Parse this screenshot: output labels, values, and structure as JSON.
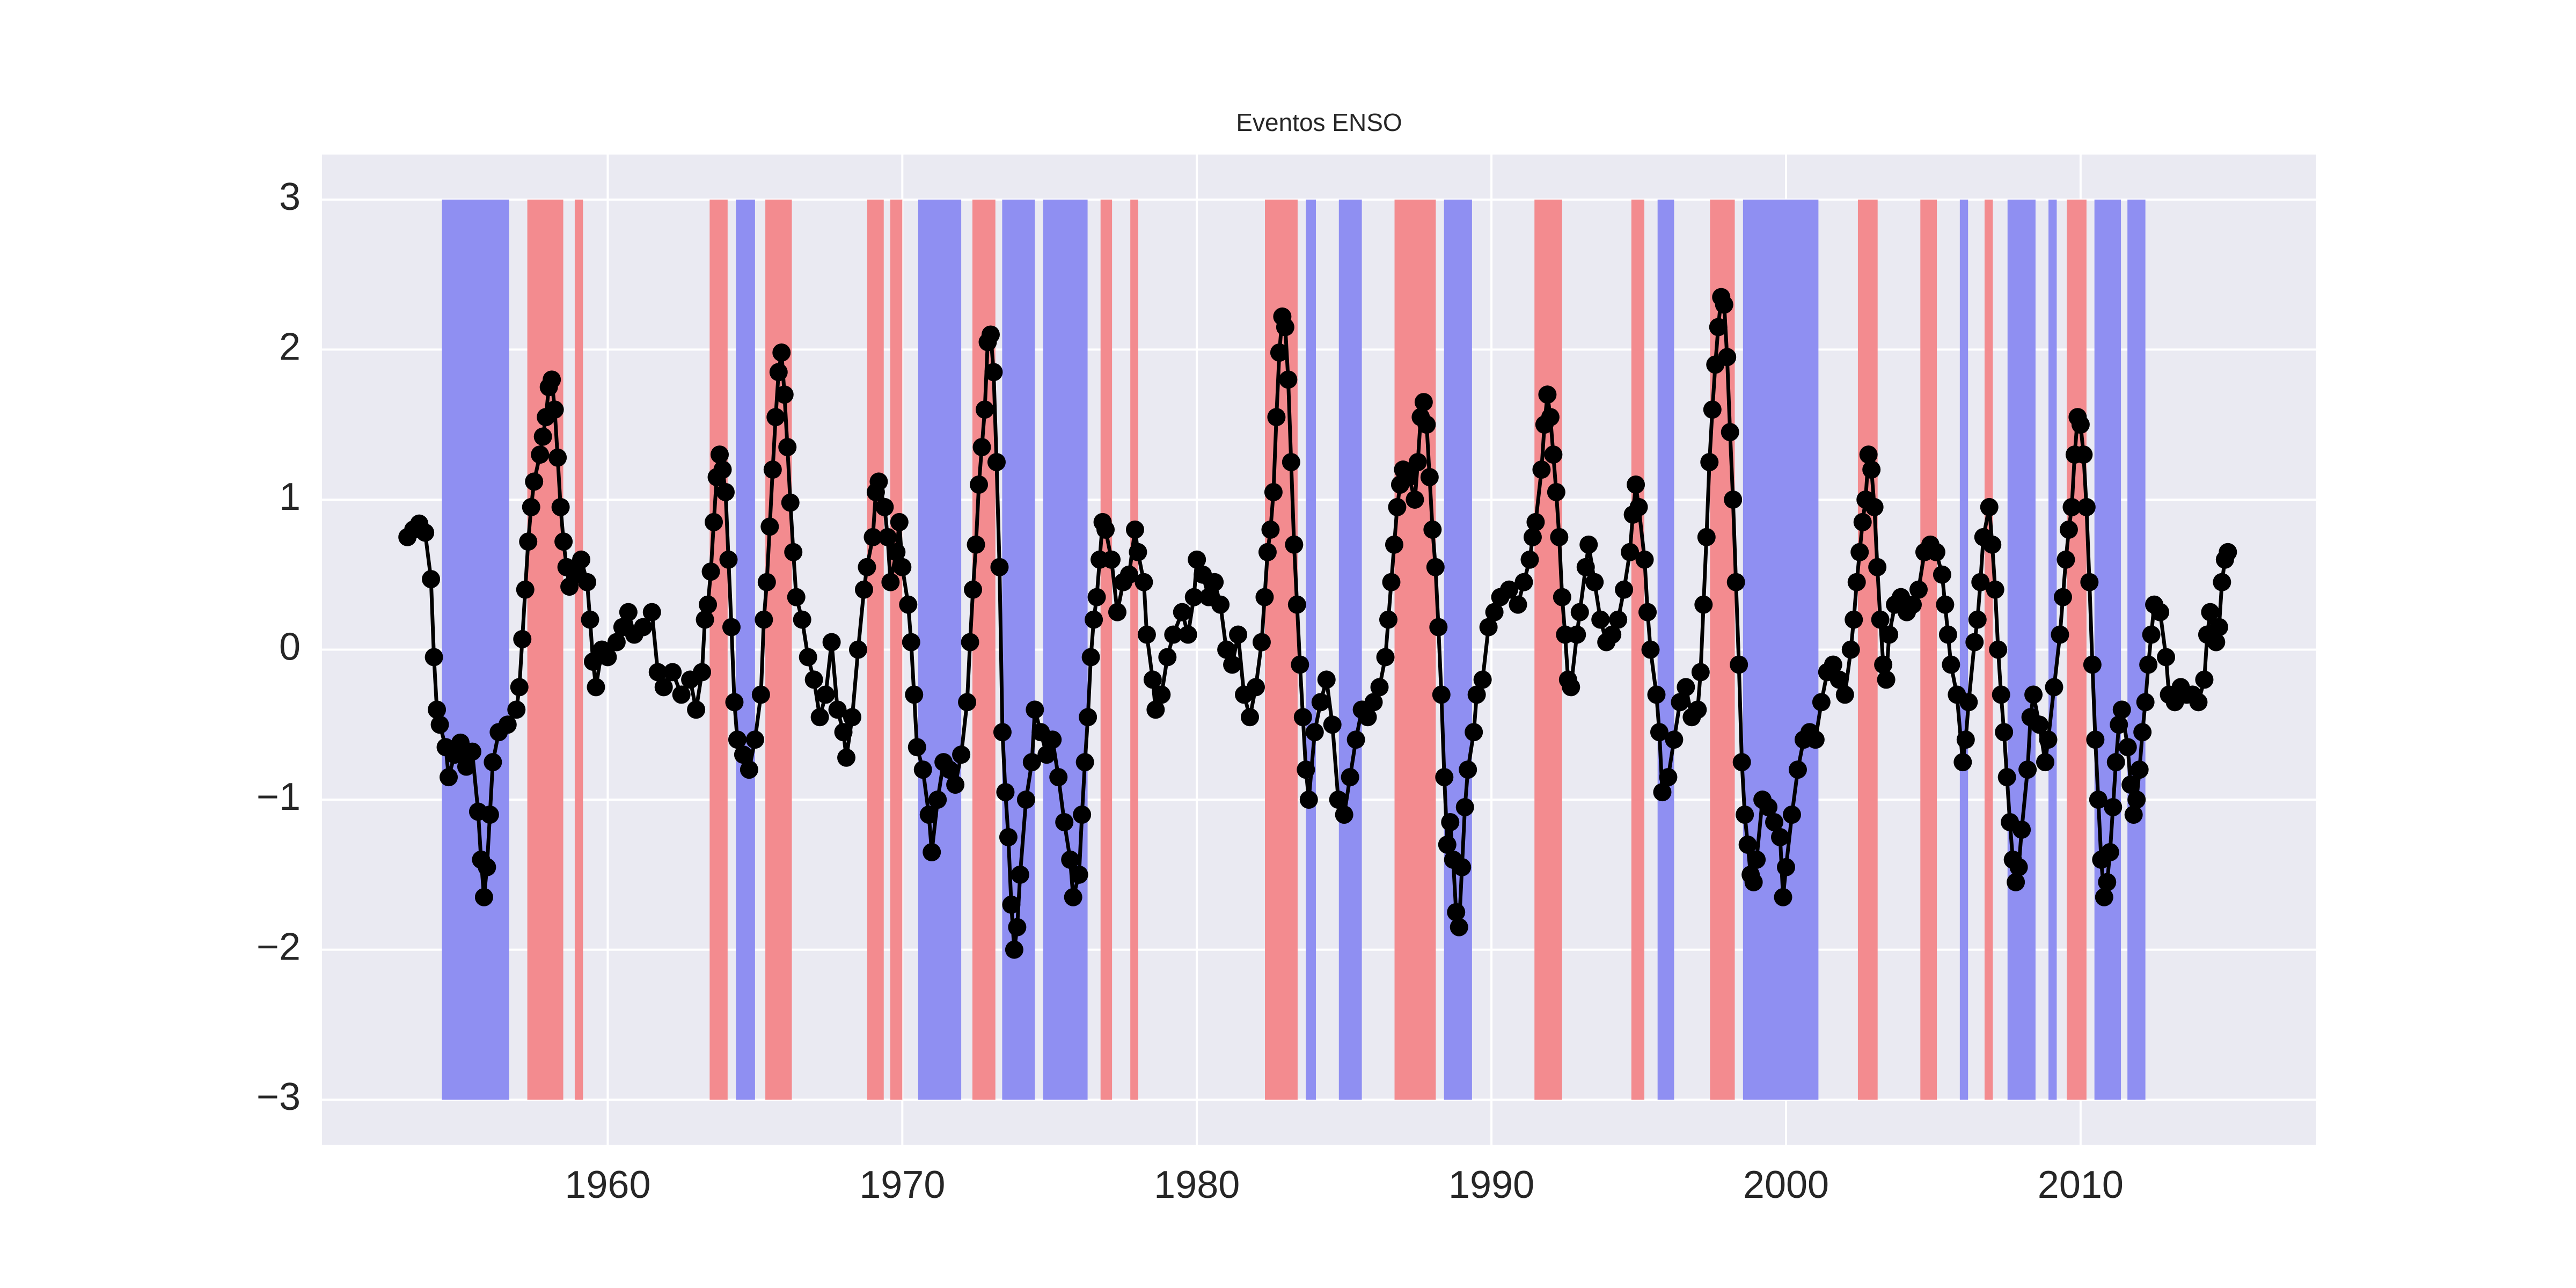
{
  "chart_data": {
    "type": "line",
    "title": "Eventos ENSO",
    "xlim": [
      1950.3,
      2018.0
    ],
    "ylim": [
      -3.3,
      3.3
    ],
    "xticks": [
      1960,
      1970,
      1980,
      1990,
      2000,
      2010
    ],
    "yticks": [
      {
        "value": -3,
        "label": "−3"
      },
      {
        "value": -2,
        "label": "−2"
      },
      {
        "value": -1,
        "label": "−1"
      },
      0,
      1,
      2,
      3
    ],
    "grid": true,
    "span_y": [
      -3,
      3
    ],
    "spans": [
      {
        "color": "#8f8ff2",
        "ranges": [
          [
            1954.37,
            1956.65
          ],
          [
            1964.35,
            1965.0
          ],
          [
            1970.54,
            1972.0
          ],
          [
            1973.39,
            1974.5
          ],
          [
            1974.78,
            1976.29
          ],
          [
            1983.7,
            1984.04
          ],
          [
            1984.82,
            1985.6
          ],
          [
            1988.39,
            1989.34
          ],
          [
            1995.64,
            1996.2
          ],
          [
            1998.54,
            2001.1
          ],
          [
            2005.9,
            2006.18
          ],
          [
            2007.52,
            2008.47
          ],
          [
            2008.91,
            2009.19
          ],
          [
            2010.47,
            2011.37
          ],
          [
            2011.59,
            2012.2
          ]
        ]
      },
      {
        "color": "#f38b8f",
        "ranges": [
          [
            1957.27,
            1958.49
          ],
          [
            1958.88,
            1959.16
          ],
          [
            1963.46,
            1964.07
          ],
          [
            1965.35,
            1966.25
          ],
          [
            1968.81,
            1969.37
          ],
          [
            1969.59,
            1970.0
          ],
          [
            1972.38,
            1973.16
          ],
          [
            1976.73,
            1977.12
          ],
          [
            1977.74,
            1978.01
          ],
          [
            1982.31,
            1983.42
          ],
          [
            1986.71,
            1988.11
          ],
          [
            1991.46,
            1992.4
          ],
          [
            1994.75,
            1995.19
          ],
          [
            1997.42,
            1998.26
          ],
          [
            2002.44,
            2003.11
          ],
          [
            2004.56,
            2005.12
          ],
          [
            2006.74,
            2007.02
          ],
          [
            2009.53,
            2010.2
          ]
        ]
      }
    ],
    "series": [
      {
        "color": "#000000",
        "x": [
          1953.2,
          1953.4,
          1953.6,
          1953.8,
          1954.0,
          1954.1,
          1954.2,
          1954.3,
          1954.5,
          1954.6,
          1954.8,
          1955.0,
          1955.2,
          1955.4,
          1955.6,
          1955.7,
          1955.8,
          1955.9,
          1956.0,
          1956.1,
          1956.3,
          1956.6,
          1956.9,
          1957.0,
          1957.1,
          1957.2,
          1957.3,
          1957.4,
          1957.5,
          1957.7,
          1957.8,
          1957.9,
          1958.0,
          1958.1,
          1958.2,
          1958.3,
          1958.4,
          1958.5,
          1958.6,
          1958.7,
          1958.9,
          1959.1,
          1959.3,
          1959.4,
          1959.5,
          1959.6,
          1959.8,
          1960.0,
          1960.3,
          1960.5,
          1960.7,
          1960.9,
          1961.2,
          1961.5,
          1961.7,
          1961.9,
          1962.2,
          1962.5,
          1962.8,
          1963.0,
          1963.2,
          1963.3,
          1963.4,
          1963.5,
          1963.6,
          1963.7,
          1963.8,
          1963.9,
          1964.0,
          1964.1,
          1964.2,
          1964.3,
          1964.4,
          1964.6,
          1964.8,
          1965.0,
          1965.2,
          1965.3,
          1965.4,
          1965.5,
          1965.6,
          1965.7,
          1965.8,
          1965.9,
          1966.0,
          1966.1,
          1966.2,
          1966.3,
          1966.4,
          1966.6,
          1966.8,
          1967.0,
          1967.2,
          1967.4,
          1967.6,
          1967.8,
          1968.0,
          1968.1,
          1968.3,
          1968.5,
          1968.7,
          1968.8,
          1969.0,
          1969.1,
          1969.2,
          1969.4,
          1969.5,
          1969.6,
          1969.8,
          1969.9,
          1970.0,
          1970.2,
          1970.3,
          1970.4,
          1970.5,
          1970.7,
          1970.9,
          1971.0,
          1971.2,
          1971.4,
          1971.6,
          1971.8,
          1972.0,
          1972.2,
          1972.3,
          1972.4,
          1972.5,
          1972.6,
          1972.7,
          1972.8,
          1972.9,
          1973.0,
          1973.1,
          1973.2,
          1973.3,
          1973.4,
          1973.5,
          1973.6,
          1973.7,
          1973.8,
          1973.9,
          1974.0,
          1974.2,
          1974.4,
          1974.5,
          1974.7,
          1974.9,
          1975.1,
          1975.3,
          1975.5,
          1975.7,
          1975.8,
          1976.0,
          1976.1,
          1976.2,
          1976.3,
          1976.4,
          1976.5,
          1976.6,
          1976.7,
          1976.8,
          1976.9,
          1977.1,
          1977.3,
          1977.5,
          1977.7,
          1977.9,
          1978.0,
          1978.2,
          1978.3,
          1978.5,
          1978.6,
          1978.8,
          1979.0,
          1979.2,
          1979.5,
          1979.7,
          1979.9,
          1980.0,
          1980.2,
          1980.4,
          1980.6,
          1980.8,
          1981.0,
          1981.2,
          1981.4,
          1981.6,
          1981.8,
          1982.0,
          1982.2,
          1982.3,
          1982.4,
          1982.5,
          1982.6,
          1982.7,
          1982.8,
          1982.9,
          1983.0,
          1983.1,
          1983.2,
          1983.3,
          1983.4,
          1983.5,
          1983.6,
          1983.7,
          1983.8,
          1984.0,
          1984.2,
          1984.4,
          1984.6,
          1984.8,
          1985.0,
          1985.2,
          1985.4,
          1985.6,
          1985.8,
          1986.0,
          1986.2,
          1986.4,
          1986.5,
          1986.6,
          1986.7,
          1986.8,
          1986.9,
          1987.0,
          1987.2,
          1987.4,
          1987.5,
          1987.6,
          1987.7,
          1987.8,
          1987.9,
          1988.0,
          1988.1,
          1988.2,
          1988.3,
          1988.4,
          1988.5,
          1988.6,
          1988.7,
          1988.8,
          1988.9,
          1989.0,
          1989.1,
          1989.2,
          1989.4,
          1989.5,
          1989.7,
          1989.9,
          1990.1,
          1990.3,
          1990.6,
          1990.9,
          1991.1,
          1991.3,
          1991.4,
          1991.5,
          1991.7,
          1991.8,
          1991.9,
          1992.0,
          1992.1,
          1992.2,
          1992.3,
          1992.4,
          1992.5,
          1992.6,
          1992.7,
          1992.9,
          1993.0,
          1993.2,
          1993.3,
          1993.5,
          1993.7,
          1993.9,
          1994.1,
          1994.3,
          1994.5,
          1994.7,
          1994.8,
          1994.9,
          1995.0,
          1995.2,
          1995.3,
          1995.4,
          1995.6,
          1995.7,
          1995.8,
          1996.0,
          1996.2,
          1996.4,
          1996.6,
          1996.8,
          1997.0,
          1997.1,
          1997.2,
          1997.3,
          1997.4,
          1997.5,
          1997.6,
          1997.7,
          1997.8,
          1997.9,
          1998.0,
          1998.1,
          1998.2,
          1998.3,
          1998.4,
          1998.5,
          1998.6,
          1998.7,
          1998.8,
          1998.9,
          1999.0,
          1999.2,
          1999.4,
          1999.6,
          1999.8,
          1999.9,
          2000.0,
          2000.2,
          2000.4,
          2000.6,
          2000.8,
          2001.0,
          2001.2,
          2001.4,
          2001.6,
          2001.8,
          2002.0,
          2002.2,
          2002.3,
          2002.4,
          2002.5,
          2002.6,
          2002.7,
          2002.8,
          2002.9,
          2003.0,
          2003.1,
          2003.2,
          2003.3,
          2003.4,
          2003.5,
          2003.7,
          2003.9,
          2004.1,
          2004.3,
          2004.5,
          2004.7,
          2004.9,
          2005.1,
          2005.3,
          2005.4,
          2005.5,
          2005.6,
          2005.8,
          2006.0,
          2006.1,
          2006.2,
          2006.4,
          2006.5,
          2006.6,
          2006.7,
          2006.9,
          2007.0,
          2007.1,
          2007.2,
          2007.3,
          2007.4,
          2007.5,
          2007.6,
          2007.7,
          2007.8,
          2007.9,
          2008.0,
          2008.2,
          2008.3,
          2008.4,
          2008.6,
          2008.8,
          2008.9,
          2009.1,
          2009.3,
          2009.4,
          2009.5,
          2009.6,
          2009.7,
          2009.8,
          2009.9,
          2010.0,
          2010.1,
          2010.2,
          2010.3,
          2010.4,
          2010.5,
          2010.6,
          2010.7,
          2010.8,
          2010.9,
          2011.0,
          2011.1,
          2011.2,
          2011.3,
          2011.4,
          2011.6,
          2011.7,
          2011.8,
          2011.9,
          2012.0,
          2012.1,
          2012.2,
          2012.3,
          2012.4,
          2012.5,
          2012.7,
          2012.9,
          2013.0,
          2013.2,
          2013.4,
          2013.6,
          2013.8,
          2014.0,
          2014.2,
          2014.3,
          2014.4,
          2014.6,
          2014.7,
          2014.8,
          2014.9,
          2015.0
        ],
        "values": [
          0.75,
          0.8,
          0.84,
          0.78,
          0.47,
          -0.05,
          -0.4,
          -0.5,
          -0.65,
          -0.85,
          -0.7,
          -0.62,
          -0.78,
          -0.68,
          -1.08,
          -1.4,
          -1.65,
          -1.45,
          -1.1,
          -0.75,
          -0.55,
          -0.5,
          -0.4,
          -0.25,
          0.07,
          0.4,
          0.72,
          0.95,
          1.12,
          1.3,
          1.42,
          1.55,
          1.75,
          1.8,
          1.6,
          1.28,
          0.95,
          0.72,
          0.55,
          0.42,
          0.5,
          0.6,
          0.45,
          0.2,
          -0.08,
          -0.25,
          0.0,
          -0.05,
          0.05,
          0.15,
          0.25,
          0.1,
          0.15,
          0.25,
          -0.15,
          -0.25,
          -0.15,
          -0.3,
          -0.2,
          -0.4,
          -0.15,
          0.2,
          0.3,
          0.52,
          0.85,
          1.15,
          1.3,
          1.2,
          1.05,
          0.6,
          0.15,
          -0.35,
          -0.6,
          -0.7,
          -0.8,
          -0.6,
          -0.3,
          0.2,
          0.45,
          0.82,
          1.2,
          1.55,
          1.85,
          1.98,
          1.7,
          1.35,
          0.98,
          0.65,
          0.35,
          0.2,
          -0.05,
          -0.2,
          -0.45,
          -0.3,
          0.05,
          -0.4,
          -0.55,
          -0.72,
          -0.45,
          0.0,
          0.4,
          0.55,
          0.75,
          1.05,
          1.12,
          0.95,
          0.75,
          0.45,
          0.65,
          0.85,
          0.55,
          0.3,
          0.05,
          -0.3,
          -0.65,
          -0.8,
          -1.1,
          -1.35,
          -1.0,
          -0.75,
          -0.8,
          -0.9,
          -0.7,
          -0.35,
          0.05,
          0.4,
          0.7,
          1.1,
          1.35,
          1.6,
          2.05,
          2.1,
          1.85,
          1.25,
          0.55,
          -0.55,
          -0.95,
          -1.25,
          -1.7,
          -2.0,
          -1.85,
          -1.5,
          -1.0,
          -0.75,
          -0.4,
          -0.55,
          -0.7,
          -0.6,
          -0.85,
          -1.15,
          -1.4,
          -1.65,
          -1.5,
          -1.1,
          -0.75,
          -0.45,
          -0.05,
          0.2,
          0.35,
          0.6,
          0.85,
          0.8,
          0.6,
          0.25,
          0.45,
          0.5,
          0.8,
          0.65,
          0.45,
          0.1,
          -0.2,
          -0.4,
          -0.3,
          -0.05,
          0.1,
          0.25,
          0.1,
          0.35,
          0.6,
          0.5,
          0.35,
          0.45,
          0.3,
          0.0,
          -0.1,
          0.1,
          -0.3,
          -0.45,
          -0.25,
          0.05,
          0.35,
          0.65,
          0.8,
          1.05,
          1.55,
          1.98,
          2.22,
          2.15,
          1.8,
          1.25,
          0.7,
          0.3,
          -0.1,
          -0.45,
          -0.8,
          -1.0,
          -0.55,
          -0.35,
          -0.2,
          -0.5,
          -1.0,
          -1.1,
          -0.85,
          -0.6,
          -0.4,
          -0.45,
          -0.35,
          -0.25,
          -0.05,
          0.2,
          0.45,
          0.7,
          0.95,
          1.1,
          1.2,
          1.15,
          1.0,
          1.25,
          1.55,
          1.65,
          1.5,
          1.15,
          0.8,
          0.55,
          0.15,
          -0.3,
          -0.85,
          -1.3,
          -1.15,
          -1.4,
          -1.75,
          -1.85,
          -1.45,
          -1.05,
          -0.8,
          -0.55,
          -0.3,
          -0.2,
          0.15,
          0.25,
          0.35,
          0.4,
          0.3,
          0.45,
          0.6,
          0.75,
          0.85,
          1.2,
          1.5,
          1.7,
          1.55,
          1.3,
          1.05,
          0.75,
          0.35,
          0.1,
          -0.2,
          -0.25,
          0.1,
          0.25,
          0.55,
          0.7,
          0.45,
          0.2,
          0.05,
          0.1,
          0.2,
          0.4,
          0.65,
          0.9,
          1.1,
          0.95,
          0.6,
          0.25,
          0.0,
          -0.3,
          -0.55,
          -0.95,
          -0.85,
          -0.6,
          -0.35,
          -0.25,
          -0.45,
          -0.4,
          -0.15,
          0.3,
          0.75,
          1.25,
          1.6,
          1.9,
          2.15,
          2.35,
          2.3,
          1.95,
          1.45,
          1.0,
          0.45,
          -0.1,
          -0.75,
          -1.1,
          -1.3,
          -1.5,
          -1.55,
          -1.4,
          -1.0,
          -1.05,
          -1.15,
          -1.25,
          -1.65,
          -1.45,
          -1.1,
          -0.8,
          -0.6,
          -0.55,
          -0.6,
          -0.35,
          -0.15,
          -0.1,
          -0.2,
          -0.3,
          0.0,
          0.2,
          0.45,
          0.65,
          0.85,
          1.0,
          1.3,
          1.2,
          0.95,
          0.55,
          0.2,
          -0.1,
          -0.2,
          0.1,
          0.3,
          0.35,
          0.25,
          0.3,
          0.4,
          0.65,
          0.7,
          0.65,
          0.5,
          0.3,
          0.1,
          -0.1,
          -0.3,
          -0.75,
          -0.6,
          -0.35,
          0.05,
          0.2,
          0.45,
          0.75,
          0.95,
          0.7,
          0.4,
          0.0,
          -0.3,
          -0.55,
          -0.85,
          -1.15,
          -1.4,
          -1.55,
          -1.45,
          -1.2,
          -0.8,
          -0.45,
          -0.3,
          -0.5,
          -0.75,
          -0.6,
          -0.25,
          0.1,
          0.35,
          0.6,
          0.8,
          0.95,
          1.3,
          1.55,
          1.5,
          1.3,
          0.95,
          0.45,
          -0.1,
          -0.6,
          -1.0,
          -1.4,
          -1.65,
          -1.55,
          -1.35,
          -1.05,
          -0.75,
          -0.5,
          -0.4,
          -0.65,
          -0.9,
          -1.1,
          -1.0,
          -0.8,
          -0.55,
          -0.35,
          -0.1,
          0.1,
          0.3,
          0.25,
          -0.05,
          -0.3,
          -0.35,
          -0.25,
          -0.3,
          -0.3,
          -0.35,
          -0.2,
          0.1,
          0.25,
          0.05,
          0.15,
          0.45,
          0.6,
          0.65
        ]
      }
    ]
  }
}
